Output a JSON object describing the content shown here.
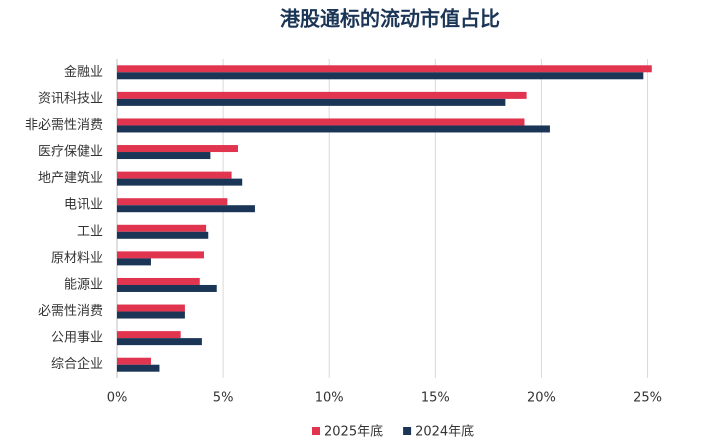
{
  "chart_data": {
    "type": "hbar",
    "title": "港股通标的流动市值占比",
    "categories": [
      "金融业",
      "资讯科技业",
      "非必需性消费",
      "医疗保健业",
      "地产建筑业",
      "电讯业",
      "工业",
      "原材料业",
      "能源业",
      "必需性消费",
      "公用事业",
      "综合企业"
    ],
    "series": [
      {
        "name": "2025年底",
        "color": "#e0344f",
        "values": [
          25.2,
          19.3,
          19.2,
          5.7,
          5.4,
          5.2,
          4.2,
          4.1,
          3.9,
          3.2,
          3.0,
          1.6
        ]
      },
      {
        "name": "2024年底",
        "color": "#1b3556",
        "values": [
          24.8,
          18.3,
          20.4,
          4.4,
          5.9,
          6.5,
          4.3,
          1.6,
          4.7,
          3.2,
          4.0,
          2.0
        ]
      }
    ],
    "xlim": [
      0,
      27
    ],
    "xticks": [
      {
        "value": 0,
        "label": "0%"
      },
      {
        "value": 5,
        "label": "5%"
      },
      {
        "value": 10,
        "label": "10%"
      },
      {
        "value": 15,
        "label": "15%"
      },
      {
        "value": 20,
        "label": "20%"
      },
      {
        "value": 25,
        "label": "25%"
      }
    ],
    "grid": true
  }
}
